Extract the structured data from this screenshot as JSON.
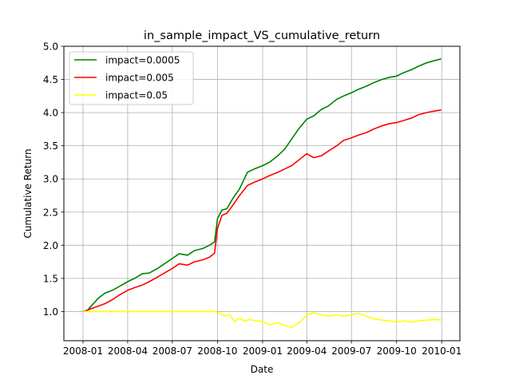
{
  "chart_data": {
    "type": "line",
    "title": "in_sample_impact_VS_cumulative_return",
    "xlabel": "Date",
    "ylabel": "Cumulative Return",
    "x_ticks": [
      "2008-01",
      "2008-04",
      "2008-07",
      "2008-10",
      "2009-01",
      "2009-04",
      "2009-07",
      "2009-10",
      "2010-01"
    ],
    "y_ticks": [
      "1.0",
      "1.5",
      "2.0",
      "2.5",
      "3.0",
      "3.5",
      "4.0",
      "4.5",
      "5.0"
    ],
    "xlim": [
      "2007-11-23",
      "2010-02-07"
    ],
    "ylim": [
      0.56,
      5.0
    ],
    "grid": true,
    "legend_position": "upper-left",
    "series": [
      {
        "name": "impact=0.0005",
        "color": "#008000",
        "points": [
          [
            "2008-01-02",
            1.0
          ],
          [
            "2008-01-10",
            1.02
          ],
          [
            "2008-01-20",
            1.1
          ],
          [
            "2008-02-01",
            1.2
          ],
          [
            "2008-02-15",
            1.28
          ],
          [
            "2008-03-01",
            1.32
          ],
          [
            "2008-03-15",
            1.38
          ],
          [
            "2008-04-01",
            1.45
          ],
          [
            "2008-04-15",
            1.5
          ],
          [
            "2008-05-01",
            1.57
          ],
          [
            "2008-05-15",
            1.58
          ],
          [
            "2008-06-01",
            1.65
          ],
          [
            "2008-06-15",
            1.72
          ],
          [
            "2008-07-01",
            1.8
          ],
          [
            "2008-07-15",
            1.87
          ],
          [
            "2008-08-01",
            1.85
          ],
          [
            "2008-08-15",
            1.92
          ],
          [
            "2008-09-01",
            1.95
          ],
          [
            "2008-09-15",
            2.0
          ],
          [
            "2008-09-25",
            2.05
          ],
          [
            "2008-10-01",
            2.4
          ],
          [
            "2008-10-10",
            2.53
          ],
          [
            "2008-10-20",
            2.55
          ],
          [
            "2008-11-01",
            2.7
          ],
          [
            "2008-11-15",
            2.85
          ],
          [
            "2008-12-01",
            3.1
          ],
          [
            "2008-12-15",
            3.15
          ],
          [
            "2009-01-01",
            3.2
          ],
          [
            "2009-01-15",
            3.25
          ],
          [
            "2009-02-01",
            3.35
          ],
          [
            "2009-02-15",
            3.45
          ],
          [
            "2009-03-01",
            3.6
          ],
          [
            "2009-03-15",
            3.75
          ],
          [
            "2009-04-01",
            3.9
          ],
          [
            "2009-04-15",
            3.95
          ],
          [
            "2009-05-01",
            4.05
          ],
          [
            "2009-05-15",
            4.1
          ],
          [
            "2009-06-01",
            4.2
          ],
          [
            "2009-06-15",
            4.25
          ],
          [
            "2009-07-01",
            4.3
          ],
          [
            "2009-07-15",
            4.35
          ],
          [
            "2009-08-01",
            4.4
          ],
          [
            "2009-08-15",
            4.45
          ],
          [
            "2009-09-01",
            4.5
          ],
          [
            "2009-09-15",
            4.53
          ],
          [
            "2009-10-01",
            4.55
          ],
          [
            "2009-10-15",
            4.6
          ],
          [
            "2009-11-01",
            4.65
          ],
          [
            "2009-11-15",
            4.7
          ],
          [
            "2009-12-01",
            4.75
          ],
          [
            "2009-12-15",
            4.78
          ],
          [
            "2009-12-31",
            4.81
          ]
        ]
      },
      {
        "name": "impact=0.005",
        "color": "#ff0000",
        "points": [
          [
            "2008-01-02",
            1.0
          ],
          [
            "2008-01-10",
            1.02
          ],
          [
            "2008-01-20",
            1.05
          ],
          [
            "2008-02-01",
            1.08
          ],
          [
            "2008-02-15",
            1.12
          ],
          [
            "2008-03-01",
            1.18
          ],
          [
            "2008-03-15",
            1.25
          ],
          [
            "2008-04-01",
            1.32
          ],
          [
            "2008-04-15",
            1.36
          ],
          [
            "2008-05-01",
            1.4
          ],
          [
            "2008-05-15",
            1.45
          ],
          [
            "2008-06-01",
            1.52
          ],
          [
            "2008-06-15",
            1.58
          ],
          [
            "2008-07-01",
            1.65
          ],
          [
            "2008-07-15",
            1.72
          ],
          [
            "2008-08-01",
            1.7
          ],
          [
            "2008-08-15",
            1.75
          ],
          [
            "2008-09-01",
            1.78
          ],
          [
            "2008-09-15",
            1.82
          ],
          [
            "2008-09-25",
            1.88
          ],
          [
            "2008-10-01",
            2.25
          ],
          [
            "2008-10-10",
            2.45
          ],
          [
            "2008-10-20",
            2.48
          ],
          [
            "2008-11-01",
            2.6
          ],
          [
            "2008-11-15",
            2.75
          ],
          [
            "2008-12-01",
            2.9
          ],
          [
            "2008-12-15",
            2.95
          ],
          [
            "2009-01-01",
            3.0
          ],
          [
            "2009-01-15",
            3.05
          ],
          [
            "2009-02-01",
            3.1
          ],
          [
            "2009-02-15",
            3.15
          ],
          [
            "2009-03-01",
            3.2
          ],
          [
            "2009-03-15",
            3.28
          ],
          [
            "2009-04-01",
            3.38
          ],
          [
            "2009-04-15",
            3.32
          ],
          [
            "2009-05-01",
            3.35
          ],
          [
            "2009-05-15",
            3.42
          ],
          [
            "2009-06-01",
            3.5
          ],
          [
            "2009-06-15",
            3.58
          ],
          [
            "2009-07-01",
            3.62
          ],
          [
            "2009-07-15",
            3.66
          ],
          [
            "2009-08-01",
            3.7
          ],
          [
            "2009-08-15",
            3.75
          ],
          [
            "2009-09-01",
            3.8
          ],
          [
            "2009-09-15",
            3.83
          ],
          [
            "2009-10-01",
            3.85
          ],
          [
            "2009-10-15",
            3.88
          ],
          [
            "2009-11-01",
            3.92
          ],
          [
            "2009-11-15",
            3.97
          ],
          [
            "2009-12-01",
            4.0
          ],
          [
            "2009-12-15",
            4.02
          ],
          [
            "2009-12-31",
            4.04
          ]
        ]
      },
      {
        "name": "impact=0.05",
        "color": "#ffff00",
        "points": [
          [
            "2008-01-02",
            1.0
          ],
          [
            "2008-02-01",
            1.0
          ],
          [
            "2008-04-01",
            1.0
          ],
          [
            "2008-06-01",
            1.0
          ],
          [
            "2008-08-01",
            1.0
          ],
          [
            "2008-09-25",
            1.0
          ],
          [
            "2008-10-05",
            0.98
          ],
          [
            "2008-10-15",
            0.93
          ],
          [
            "2008-10-25",
            0.96
          ],
          [
            "2008-11-05",
            0.85
          ],
          [
            "2008-11-15",
            0.9
          ],
          [
            "2008-11-25",
            0.86
          ],
          [
            "2008-12-05",
            0.88
          ],
          [
            "2008-12-20",
            0.86
          ],
          [
            "2009-01-01",
            0.85
          ],
          [
            "2009-01-15",
            0.8
          ],
          [
            "2009-02-01",
            0.83
          ],
          [
            "2009-02-15",
            0.79
          ],
          [
            "2009-03-01",
            0.76
          ],
          [
            "2009-03-10",
            0.8
          ],
          [
            "2009-03-20",
            0.85
          ],
          [
            "2009-04-01",
            0.95
          ],
          [
            "2009-04-15",
            0.98
          ],
          [
            "2009-05-01",
            0.95
          ],
          [
            "2009-05-15",
            0.93
          ],
          [
            "2009-06-01",
            0.95
          ],
          [
            "2009-06-15",
            0.93
          ],
          [
            "2009-07-01",
            0.95
          ],
          [
            "2009-07-15",
            0.97
          ],
          [
            "2009-08-01",
            0.93
          ],
          [
            "2009-08-15",
            0.89
          ],
          [
            "2009-09-01",
            0.87
          ],
          [
            "2009-09-15",
            0.86
          ],
          [
            "2009-10-01",
            0.84
          ],
          [
            "2009-10-15",
            0.86
          ],
          [
            "2009-11-01",
            0.84
          ],
          [
            "2009-11-15",
            0.86
          ],
          [
            "2009-12-01",
            0.87
          ],
          [
            "2009-12-15",
            0.88
          ],
          [
            "2009-12-31",
            0.87
          ]
        ]
      }
    ]
  }
}
